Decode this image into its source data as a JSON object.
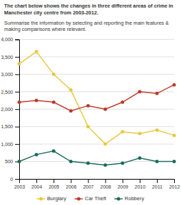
{
  "chart_data": {
    "type": "line",
    "title": "The chart below shows the changes in three different areas of crime in\nManchester city centre from 2003-2012.",
    "subtitle": "Summarise the information by selecting and reporting the main features &\nmaking comparisons where relevant.",
    "x": [
      2003,
      2004,
      2005,
      2006,
      2007,
      2008,
      2009,
      2010,
      2011,
      2012
    ],
    "series": [
      {
        "name": "Burglary",
        "color": "#e8c840",
        "values": [
          3300,
          3650,
          3000,
          2550,
          1500,
          1000,
          1350,
          1300,
          1400,
          1250
        ]
      },
      {
        "name": "Car Theft",
        "color": "#c0392b",
        "values": [
          2200,
          2250,
          2200,
          1950,
          2100,
          2000,
          2200,
          2500,
          2450,
          2700
        ]
      },
      {
        "name": "Robbery",
        "color": "#1a6b5a",
        "values": [
          500,
          700,
          800,
          500,
          450,
          400,
          450,
          600,
          500,
          500
        ]
      }
    ],
    "xlim": [
      2003,
      2012
    ],
    "xticks": [
      2003,
      2004,
      2005,
      2006,
      2007,
      2008,
      2009,
      2010,
      2011,
      2012
    ],
    "ylim": [
      0,
      4000
    ],
    "yticks": [
      0,
      500,
      {
        "value": 1000,
        "label": "1,000"
      },
      {
        "value": 1500,
        "label": "1,500"
      },
      {
        "value": 2000,
        "label": "2,000"
      },
      {
        "value": 2500,
        "label": "2,500"
      },
      {
        "value": 3000,
        "label": "3,000"
      },
      {
        "value": 3500,
        "label": "3,500"
      },
      {
        "value": 4000,
        "label": "4,000"
      }
    ],
    "grid": true,
    "legend": "bottom",
    "marker": "circle"
  }
}
